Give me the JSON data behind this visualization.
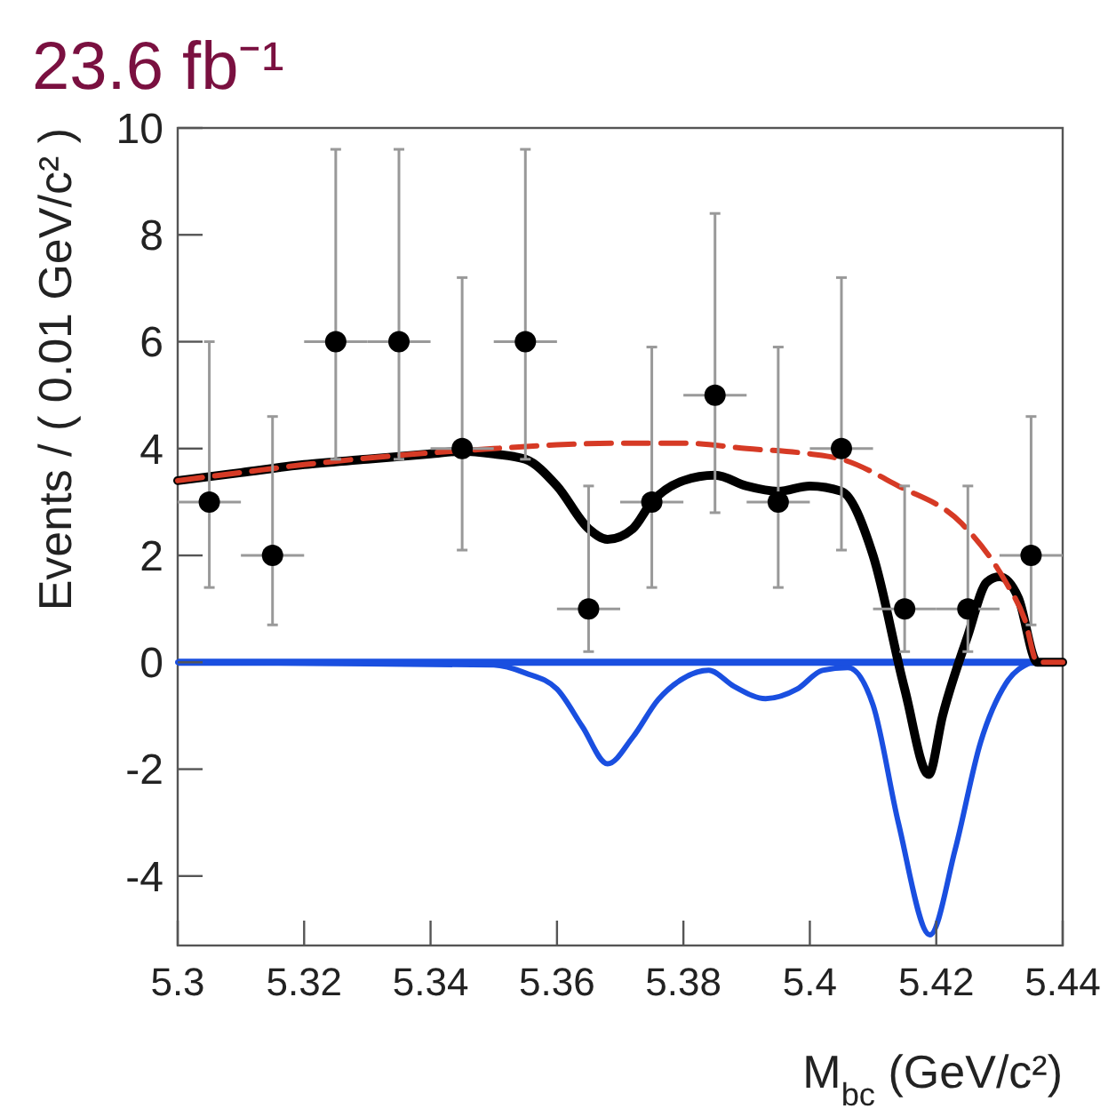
{
  "chart_data": {
    "type": "line",
    "title": "23.6 fb⁻¹",
    "xlabel": "M$_{bc}$ (GeV/c²)",
    "ylabel": "Events / ( 0.01 GeV/c² )",
    "xlim": [
      5.3,
      5.44
    ],
    "ylim": [
      -5.3,
      10
    ],
    "xticks": [
      5.3,
      5.32,
      5.34,
      5.36,
      5.38,
      5.4,
      5.42,
      5.44
    ],
    "yticks": [
      -4,
      -2,
      0,
      2,
      4,
      6,
      8,
      10
    ],
    "grid": false,
    "ref_lines": [
      {
        "axis": "y",
        "value": 0,
        "color": "#1a4fe0"
      }
    ],
    "series": [
      {
        "color": "#1a4fe0",
        "line_style": "solid",
        "x": [
          5.3,
          5.35,
          5.355,
          5.36,
          5.364,
          5.368,
          5.372,
          5.376,
          5.38,
          5.384,
          5.388,
          5.393,
          5.398,
          5.402,
          5.406,
          5.41,
          5.414,
          5.419,
          5.423,
          5.427,
          5.431,
          5.435
        ],
        "values": [
          0,
          -0.05,
          -0.2,
          -0.5,
          -1.2,
          -1.9,
          -1.4,
          -0.7,
          -0.3,
          -0.15,
          -0.45,
          -0.68,
          -0.5,
          -0.15,
          -0.1,
          -0.8,
          -3.0,
          -5.1,
          -3.5,
          -1.5,
          -0.4,
          0
        ]
      },
      {
        "color": "#000000",
        "line_style": "solid",
        "x": [
          5.3,
          5.31,
          5.32,
          5.33,
          5.34,
          5.345,
          5.35,
          5.355,
          5.36,
          5.365,
          5.368,
          5.372,
          5.375,
          5.38,
          5.385,
          5.39,
          5.395,
          5.4,
          5.405,
          5.41,
          5.415,
          5.4188,
          5.421,
          5.425,
          5.428,
          5.43,
          5.433,
          5.436,
          5.44
        ],
        "values": [
          3.4,
          3.55,
          3.7,
          3.8,
          3.9,
          3.95,
          3.9,
          3.8,
          3.3,
          2.5,
          2.3,
          2.5,
          3.0,
          3.4,
          3.5,
          3.3,
          3.2,
          3.3,
          3.2,
          2.0,
          -0.5,
          -2.1,
          -1.0,
          0.5,
          1.5,
          1.6,
          1.2,
          0,
          0
        ]
      },
      {
        "color": "#d63a25",
        "line_style": "dashed",
        "x": [
          5.3,
          5.31,
          5.32,
          5.33,
          5.34,
          5.35,
          5.36,
          5.37,
          5.38,
          5.39,
          5.4,
          5.405,
          5.414,
          5.424,
          5.431,
          5.434,
          5.436,
          5.44
        ],
        "values": [
          3.4,
          3.55,
          3.7,
          3.82,
          3.92,
          4.0,
          4.07,
          4.1,
          4.1,
          4.0,
          3.9,
          3.8,
          3.3,
          2.6,
          1.5,
          0.8,
          0,
          0
        ]
      },
      {
        "type": "scatter",
        "color": "#000000",
        "marker": "circle",
        "x": [
          5.305,
          5.315,
          5.325,
          5.335,
          5.345,
          5.355,
          5.365,
          5.375,
          5.385,
          5.395,
          5.405,
          5.415,
          5.425,
          5.435
        ],
        "values": [
          3,
          2,
          6,
          6,
          4,
          6,
          1,
          3,
          5,
          3,
          4,
          1,
          1,
          2
        ],
        "errors": [
          [
            1.4,
            6
          ],
          [
            0.7,
            4.6
          ],
          [
            3.8,
            9.6
          ],
          [
            3.8,
            9.6
          ],
          [
            2.1,
            7.2
          ],
          [
            3.8,
            9.6
          ],
          [
            0.2,
            3.3
          ],
          [
            1.4,
            5.9
          ],
          [
            2.8,
            8.4
          ],
          [
            1.4,
            5.9
          ],
          [
            2.1,
            7.2
          ],
          [
            0.2,
            3.3
          ],
          [
            0.2,
            3.3
          ],
          [
            0.7,
            4.6
          ]
        ],
        "xerrors": [
          0.005,
          0.005,
          0.005,
          0.005,
          0.005,
          0.005,
          0.005,
          0.005,
          0.005,
          0.005,
          0.005,
          0.005,
          0.005,
          0.005
        ]
      }
    ]
  }
}
